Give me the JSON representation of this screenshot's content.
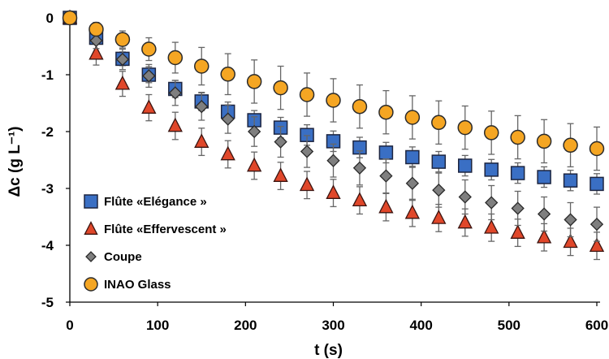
{
  "chart_data": {
    "type": "scatter",
    "title": "",
    "xlabel": "t (s)",
    "ylabel": "Δc (g L⁻¹)",
    "xlim": [
      0,
      600
    ],
    "ylim": [
      -5,
      0
    ],
    "xticks": [
      0,
      100,
      200,
      300,
      400,
      500,
      600
    ],
    "yticks": [
      0,
      -1,
      -2,
      -3,
      -4,
      -5
    ],
    "grid": false,
    "legend_position": "bottom-left",
    "x": [
      0,
      30,
      60,
      90,
      120,
      150,
      180,
      210,
      240,
      270,
      300,
      330,
      360,
      390,
      420,
      450,
      480,
      510,
      540,
      570,
      600
    ],
    "series": [
      {
        "name": "Flûte «Elégance »",
        "marker": "square",
        "color": "#3a6fc4",
        "values": [
          0,
          -0.35,
          -0.72,
          -1.0,
          -1.25,
          -1.47,
          -1.65,
          -1.8,
          -1.93,
          -2.06,
          -2.17,
          -2.28,
          -2.37,
          -2.45,
          -2.53,
          -2.6,
          -2.67,
          -2.73,
          -2.8,
          -2.86,
          -2.92
        ],
        "error": [
          0,
          0.1,
          0.12,
          0.14,
          0.15,
          0.16,
          0.17,
          0.17,
          0.18,
          0.18,
          0.18,
          0.18,
          0.18,
          0.18,
          0.18,
          0.18,
          0.18,
          0.18,
          0.18,
          0.18,
          0.18
        ]
      },
      {
        "name": "Flûte «Effervescent »",
        "marker": "triangle",
        "color": "#e0472a",
        "values": [
          0,
          -0.63,
          -1.16,
          -1.58,
          -1.9,
          -2.18,
          -2.4,
          -2.6,
          -2.78,
          -2.94,
          -3.08,
          -3.21,
          -3.33,
          -3.43,
          -3.52,
          -3.6,
          -3.69,
          -3.78,
          -3.86,
          -3.94,
          -4.01
        ],
        "error": [
          0,
          0.2,
          0.22,
          0.23,
          0.24,
          0.24,
          0.24,
          0.24,
          0.24,
          0.24,
          0.24,
          0.24,
          0.24,
          0.24,
          0.24,
          0.24,
          0.24,
          0.24,
          0.24,
          0.24,
          0.24
        ]
      },
      {
        "name": "Coupe",
        "marker": "diamond",
        "color": "#7f7f7f",
        "values": [
          0,
          -0.4,
          -0.73,
          -1.02,
          -1.32,
          -1.56,
          -1.78,
          -2.0,
          -2.18,
          -2.35,
          -2.51,
          -2.64,
          -2.78,
          -2.91,
          -3.03,
          -3.15,
          -3.25,
          -3.35,
          -3.45,
          -3.55,
          -3.63
        ],
        "error": [
          0,
          0.14,
          0.18,
          0.2,
          0.22,
          0.24,
          0.25,
          0.26,
          0.27,
          0.28,
          0.29,
          0.3,
          0.3,
          0.3,
          0.3,
          0.3,
          0.3,
          0.3,
          0.3,
          0.3,
          0.3
        ]
      },
      {
        "name": "INAO Glass",
        "marker": "circle",
        "color": "#f5a623",
        "values": [
          0,
          -0.2,
          -0.38,
          -0.55,
          -0.7,
          -0.85,
          -0.99,
          -1.12,
          -1.23,
          -1.35,
          -1.45,
          -1.56,
          -1.66,
          -1.75,
          -1.84,
          -1.93,
          -2.02,
          -2.1,
          -2.17,
          -2.24,
          -2.3
        ],
        "error": [
          0,
          0.12,
          0.15,
          0.2,
          0.27,
          0.33,
          0.36,
          0.38,
          0.38,
          0.38,
          0.38,
          0.38,
          0.38,
          0.38,
          0.38,
          0.38,
          0.38,
          0.38,
          0.38,
          0.38,
          0.38
        ]
      }
    ]
  }
}
